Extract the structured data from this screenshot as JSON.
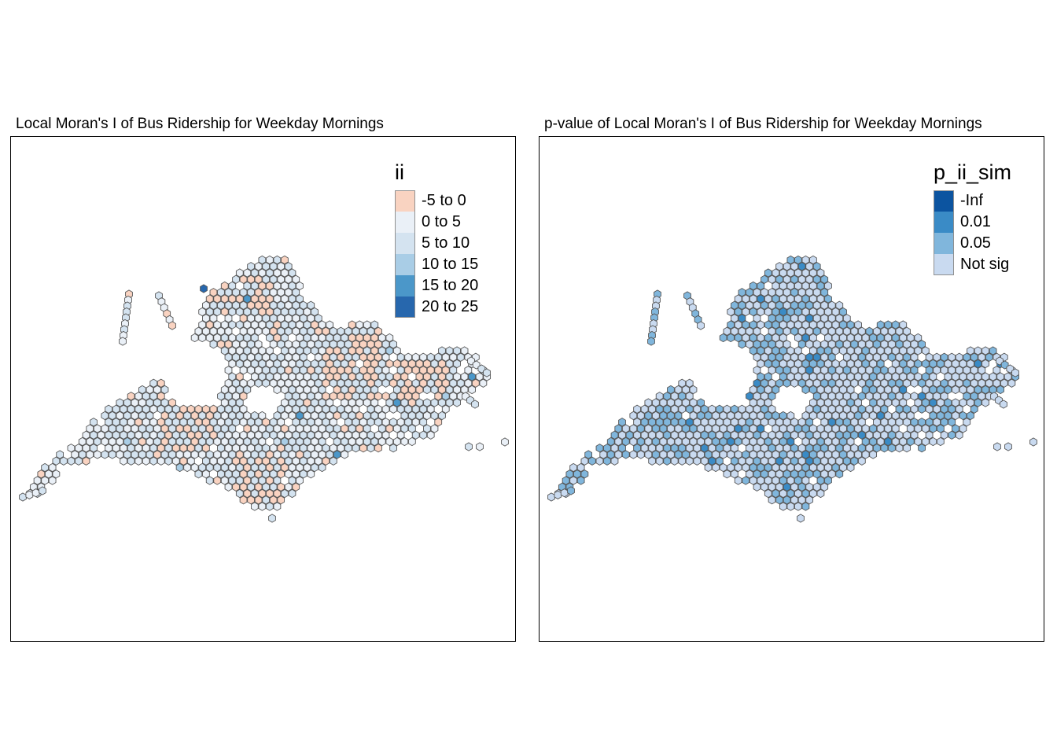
{
  "panels": [
    {
      "title": "Local Moran's I of Bus Ridership for Weekday Mornings",
      "legend": {
        "title": "ii",
        "items": [
          {
            "label": "-5 to 0",
            "color": "#f9d3c1"
          },
          {
            "label": "0 to 5",
            "color": "#eaf0f7"
          },
          {
            "label": "5 to 10",
            "color": "#d4e3f0"
          },
          {
            "label": "10 to 15",
            "color": "#a9cde6"
          },
          {
            "label": "15 to 20",
            "color": "#4b97c9"
          },
          {
            "label": "20 to 25",
            "color": "#2767ad"
          }
        ]
      }
    },
    {
      "title": "p-value of Local Moran's I of Bus Ridership for Weekday Mornings",
      "legend": {
        "title": "p_ii_sim",
        "items": [
          {
            "label": "-Inf",
            "color": "#0c54a0"
          },
          {
            "label": "0.01",
            "color": "#3a8bc6"
          },
          {
            "label": "0.05",
            "color": "#80b6dc"
          },
          {
            "label": "Not sig",
            "color": "#c9daf0"
          }
        ]
      }
    }
  ],
  "hex_outline_color": "#555555"
}
